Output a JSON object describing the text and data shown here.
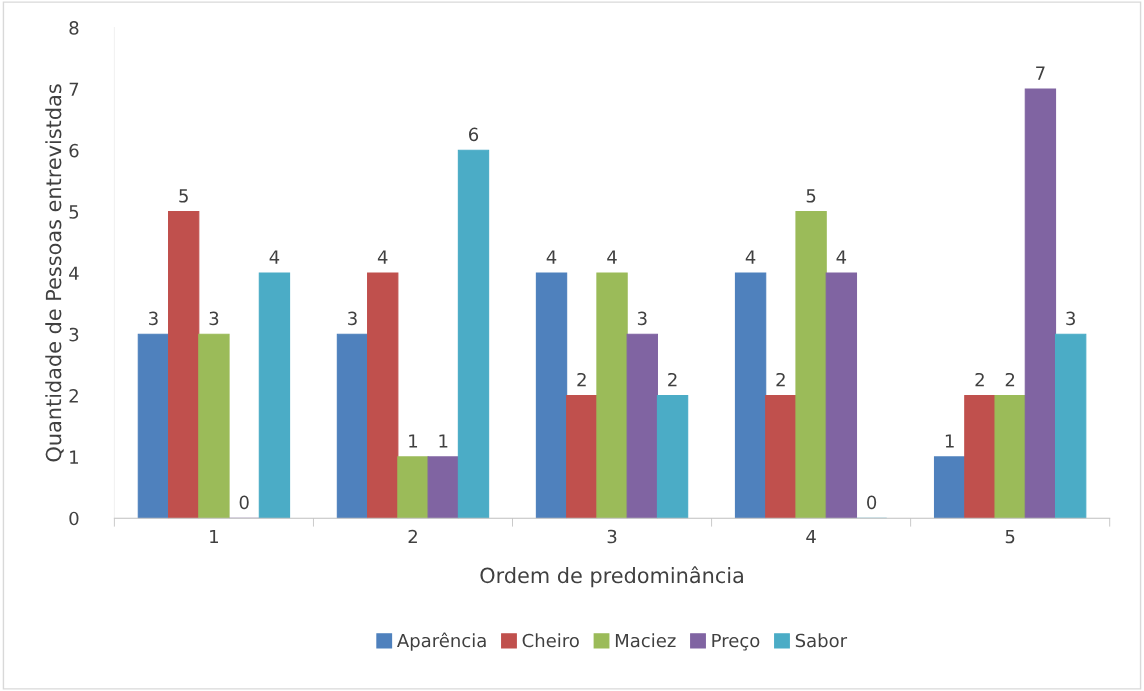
{
  "chart_data": {
    "type": "bar",
    "xlabel": "Ordem de predominância",
    "ylabel": "Quantidade de Pessoas entrevistdas",
    "categories": [
      "1",
      "2",
      "3",
      "4",
      "5"
    ],
    "series": [
      {
        "name": "Aparência",
        "color": "#4f81bd",
        "values": [
          3,
          3,
          4,
          4,
          1
        ]
      },
      {
        "name": "Cheiro",
        "color": "#c0504d",
        "values": [
          5,
          4,
          2,
          2,
          2
        ]
      },
      {
        "name": "Maciez",
        "color": "#9bbb59",
        "values": [
          3,
          1,
          4,
          5,
          2
        ]
      },
      {
        "name": "Preço",
        "color": "#8064a2",
        "values": [
          0,
          1,
          3,
          4,
          7
        ]
      },
      {
        "name": "Sabor",
        "color": "#4bacc6",
        "values": [
          4,
          6,
          2,
          0,
          3
        ]
      }
    ],
    "ylim": [
      0,
      8
    ],
    "yticks": [
      0,
      1,
      2,
      3,
      4,
      5,
      6,
      7,
      8
    ],
    "grid": false,
    "legend": "bottom",
    "data_labels": true
  }
}
